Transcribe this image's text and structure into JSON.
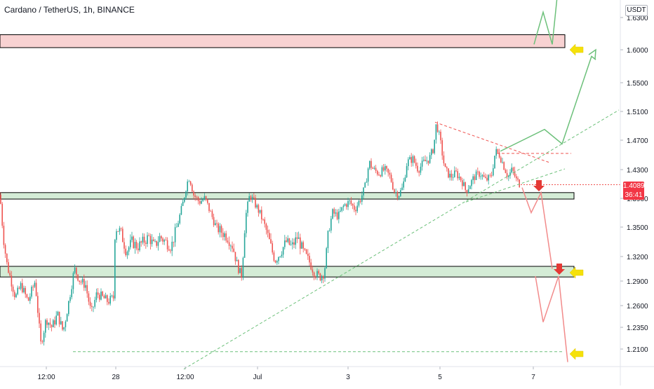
{
  "header": {
    "title": "Cardano / TetherUS, 1h, BINANCE",
    "currency": "USDT"
  },
  "price_marker": {
    "price": "1.4089",
    "countdown": "36:41",
    "color": "#f23645"
  },
  "colors": {
    "up_candle": "#26a69a",
    "down_candle": "#ef5350",
    "support_zone": "#d4ecd6",
    "resistance_zone": "#f8d2d2",
    "projection_green": "#6cc07a",
    "projection_red": "#f28b8b",
    "arrow_yellow": "#f5e10a",
    "arrow_red": "#e53935"
  },
  "chart_data": {
    "type": "candlestick",
    "title": "Cardano / TetherUS, 1h, BINANCE",
    "y_axis": {
      "ticks": [
        "1.6300",
        "1.6000",
        "1.5500",
        "1.5100",
        "1.4700",
        "1.4300",
        "1.3900",
        "1.3500",
        "1.3200",
        "1.2900",
        "1.2600",
        "1.2350",
        "1.2100"
      ],
      "range": [
        1.195,
        1.66
      ],
      "scale": "logarithmic-like"
    },
    "x_axis": {
      "ticks": [
        "12:00",
        "28",
        "12:00",
        "Jul",
        "3",
        "5",
        "7"
      ]
    },
    "price_path": [
      [
        0,
        1.395
      ],
      [
        4,
        1.345
      ],
      [
        10,
        1.31
      ],
      [
        16,
        1.29
      ],
      [
        22,
        1.27
      ],
      [
        30,
        1.285
      ],
      [
        40,
        1.265
      ],
      [
        50,
        1.29
      ],
      [
        58,
        1.215
      ],
      [
        66,
        1.245
      ],
      [
        74,
        1.235
      ],
      [
        82,
        1.25
      ],
      [
        90,
        1.23
      ],
      [
        98,
        1.265
      ],
      [
        106,
        1.305
      ],
      [
        114,
        1.29
      ],
      [
        122,
        1.285
      ],
      [
        130,
        1.25
      ],
      [
        138,
        1.275
      ],
      [
        146,
        1.27
      ],
      [
        154,
        1.265
      ],
      [
        162,
        1.27
      ],
      [
        164,
        1.35
      ],
      [
        172,
        1.345
      ],
      [
        180,
        1.325
      ],
      [
        188,
        1.335
      ],
      [
        196,
        1.33
      ],
      [
        204,
        1.335
      ],
      [
        212,
        1.34
      ],
      [
        220,
        1.33
      ],
      [
        228,
        1.34
      ],
      [
        236,
        1.335
      ],
      [
        244,
        1.33
      ],
      [
        252,
        1.35
      ],
      [
        260,
        1.38
      ],
      [
        266,
        1.41
      ],
      [
        270,
        1.42
      ],
      [
        276,
        1.395
      ],
      [
        284,
        1.385
      ],
      [
        292,
        1.39
      ],
      [
        300,
        1.37
      ],
      [
        308,
        1.35
      ],
      [
        316,
        1.345
      ],
      [
        324,
        1.34
      ],
      [
        332,
        1.33
      ],
      [
        338,
        1.31
      ],
      [
        344,
        1.295
      ],
      [
        350,
        1.365
      ],
      [
        356,
        1.395
      ],
      [
        362,
        1.385
      ],
      [
        370,
        1.37
      ],
      [
        378,
        1.35
      ],
      [
        386,
        1.33
      ],
      [
        392,
        1.315
      ],
      [
        400,
        1.325
      ],
      [
        408,
        1.335
      ],
      [
        416,
        1.33
      ],
      [
        424,
        1.34
      ],
      [
        432,
        1.325
      ],
      [
        440,
        1.315
      ],
      [
        448,
        1.3
      ],
      [
        456,
        1.295
      ],
      [
        462,
        1.3
      ],
      [
        468,
        1.345
      ],
      [
        474,
        1.37
      ],
      [
        482,
        1.365
      ],
      [
        490,
        1.38
      ],
      [
        498,
        1.385
      ],
      [
        506,
        1.375
      ],
      [
        514,
        1.39
      ],
      [
        520,
        1.405
      ],
      [
        526,
        1.44
      ],
      [
        532,
        1.43
      ],
      [
        540,
        1.425
      ],
      [
        548,
        1.43
      ],
      [
        556,
        1.42
      ],
      [
        562,
        1.4
      ],
      [
        568,
        1.395
      ],
      [
        574,
        1.405
      ],
      [
        580,
        1.44
      ],
      [
        588,
        1.445
      ],
      [
        596,
        1.43
      ],
      [
        604,
        1.44
      ],
      [
        612,
        1.445
      ],
      [
        618,
        1.46
      ],
      [
        622,
        1.495
      ],
      [
        628,
        1.465
      ],
      [
        634,
        1.43
      ],
      [
        642,
        1.42
      ],
      [
        650,
        1.425
      ],
      [
        658,
        1.415
      ],
      [
        664,
        1.4
      ],
      [
        670,
        1.41
      ],
      [
        676,
        1.42
      ],
      [
        684,
        1.425
      ],
      [
        692,
        1.415
      ],
      [
        700,
        1.42
      ],
      [
        706,
        1.455
      ],
      [
        712,
        1.45
      ],
      [
        718,
        1.435
      ],
      [
        724,
        1.42
      ],
      [
        730,
        1.43
      ],
      [
        736,
        1.415
      ],
      [
        742,
        1.409
      ]
    ],
    "zones": [
      {
        "kind": "resistance",
        "y_range": [
          1.602,
          1.614
        ]
      },
      {
        "kind": "support",
        "y_range": [
          1.389,
          1.398
        ]
      },
      {
        "kind": "support",
        "y_range": [
          1.295,
          1.308
        ]
      }
    ],
    "trendlines": [
      {
        "style": "dashed-green",
        "from": [
          262,
          1.187
        ],
        "to": [
          882,
          1.512
        ]
      },
      {
        "style": "dashed-green",
        "from": [
          104,
          1.207
        ],
        "to": [
          802,
          1.207
        ]
      },
      {
        "style": "dashed-red",
        "from": [
          620,
          1.495
        ],
        "to": [
          782,
          1.44
        ]
      },
      {
        "style": "dashed-red",
        "from": [
          708,
          1.452
        ],
        "to": [
          814,
          1.452
        ]
      },
      {
        "style": "dashed-green",
        "from": [
          664,
          1.385
        ],
        "to": [
          805,
          1.431
        ]
      }
    ],
    "projections": {
      "bullish_main": [
        [
          713,
          1.455
        ],
        [
          776,
          1.485
        ],
        [
          801,
          1.465
        ],
        [
          843,
          1.59
        ],
        [
          849,
          1.585
        ]
      ],
      "bullish_top": [
        [
          761,
          1.605
        ],
        [
          774,
          1.635
        ],
        [
          787,
          1.605
        ],
        [
          796,
          1.662
        ]
      ],
      "bearish_1": [
        [
          744,
          1.405
        ],
        [
          757,
          1.37
        ],
        [
          771,
          1.398
        ],
        [
          787,
          1.305
        ]
      ],
      "bearish_2": [
        [
          763,
          1.296
        ],
        [
          774,
          1.241
        ],
        [
          796,
          1.296
        ],
        [
          809,
          1.195
        ]
      ]
    }
  }
}
